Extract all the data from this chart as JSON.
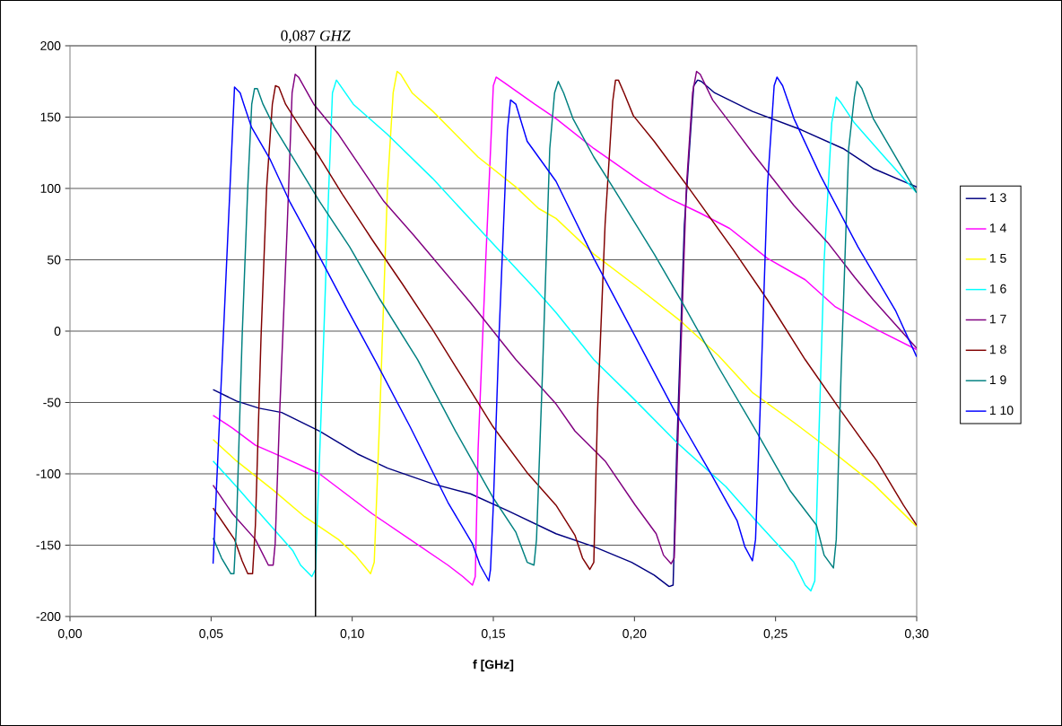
{
  "chart_data": {
    "type": "line",
    "xlabel": "f [GHz]",
    "xlim": [
      0,
      0.3
    ],
    "ylim": [
      -200,
      200
    ],
    "xticks": [
      {
        "value": 0,
        "label": "0,00"
      },
      {
        "value": 0.05,
        "label": "0,05"
      },
      {
        "value": 0.1,
        "label": "0,10"
      },
      {
        "value": 0.15,
        "label": "0,15"
      },
      {
        "value": 0.2,
        "label": "0,20"
      },
      {
        "value": 0.25,
        "label": "0,25"
      },
      {
        "value": 0.3,
        "label": "0,30"
      }
    ],
    "yticks": [
      -200,
      -150,
      -100,
      -50,
      0,
      50,
      100,
      150,
      200
    ],
    "grid": "y",
    "legend": "right",
    "ref_lines": [
      {
        "axis": "x",
        "value": 0.087,
        "label": "0,087 *GHZ*",
        "color": "#000000"
      }
    ],
    "series": [
      {
        "name": "1 3",
        "color": "#000080",
        "x": [
          0.0507,
          0.059,
          0.067,
          0.075,
          0.0884,
          0.1018,
          0.1125,
          0.1285,
          0.1419,
          0.1553,
          0.1722,
          0.1856,
          0.199,
          0.207,
          0.2123,
          0.2137,
          0.215,
          0.2177,
          0.221,
          0.2224,
          0.2237,
          0.2284,
          0.2418,
          0.2592,
          0.2739,
          0.2846,
          0.3
        ],
        "values": [
          -41,
          -49,
          -54,
          -57,
          -70,
          -86,
          -96,
          -107,
          -114,
          -126,
          -142,
          -151,
          -162,
          -171,
          -179,
          -178,
          -83,
          75,
          172,
          176,
          175,
          167,
          154,
          141,
          128,
          114,
          101
        ]
      },
      {
        "name": "1 4",
        "color": "#ff00ff",
        "x": [
          0.0507,
          0.0576,
          0.0657,
          0.075,
          0.0884,
          0.1071,
          0.1205,
          0.1339,
          0.1392,
          0.1426,
          0.1436,
          0.1446,
          0.1473,
          0.15,
          0.151,
          0.154,
          0.1647,
          0.1722,
          0.1856,
          0.203,
          0.2123,
          0.223,
          0.2337,
          0.2471,
          0.2605,
          0.2712,
          0.2859,
          0.3
        ],
        "values": [
          -59,
          -68,
          -80,
          -88,
          -100,
          -128,
          -146,
          -164,
          -172,
          -178,
          -172,
          -83,
          49,
          172,
          178,
          174,
          159,
          149,
          128,
          104,
          93,
          83,
          72,
          51,
          36,
          17,
          1,
          -13
        ]
      },
      {
        "name": "1 5",
        "color": "#ffff00",
        "x": [
          0.0507,
          0.059,
          0.0724,
          0.0831,
          0.0951,
          0.1011,
          0.1065,
          0.1078,
          0.1098,
          0.1125,
          0.1145,
          0.1159,
          0.1172,
          0.1212,
          0.1286,
          0.1446,
          0.158,
          0.166,
          0.1722,
          0.1856,
          0.2016,
          0.2164,
          0.2297,
          0.2418,
          0.2565,
          0.2712,
          0.2846,
          0.3
        ],
        "values": [
          -76,
          -91,
          -112,
          -130,
          -146,
          -157,
          -170,
          -162,
          -57,
          101,
          167,
          182,
          180,
          167,
          154,
          122,
          101,
          86,
          79,
          54,
          30,
          7,
          -17,
          -43,
          -64,
          -86,
          -107,
          -137
        ]
      },
      {
        "name": "1 6",
        "color": "#00ffff",
        "x": [
          0.0507,
          0.059,
          0.0683,
          0.079,
          0.0817,
          0.0857,
          0.087,
          0.089,
          0.0917,
          0.093,
          0.0944,
          0.1004,
          0.1124,
          0.1285,
          0.1472,
          0.1646,
          0.1722,
          0.1856,
          0.199,
          0.215,
          0.2324,
          0.2431,
          0.2565,
          0.2605,
          0.2625,
          0.2639,
          0.2652,
          0.2672,
          0.2699,
          0.2715,
          0.2732,
          0.2779,
          0.2886,
          0.3
        ],
        "values": [
          -91,
          -109,
          -130,
          -154,
          -164,
          -172,
          -167,
          -57,
          101,
          167,
          176,
          159,
          138,
          107,
          67,
          30,
          13,
          -20,
          -46,
          -78,
          -109,
          -133,
          -162,
          -178,
          -182,
          -175,
          -83,
          49,
          146,
          164,
          160,
          146,
          122,
          97
        ]
      },
      {
        "name": "1 7",
        "color": "#800080",
        "x": [
          0.0507,
          0.0576,
          0.0657,
          0.0703,
          0.072,
          0.0727,
          0.0743,
          0.077,
          0.0787,
          0.0798,
          0.081,
          0.0864,
          0.0951,
          0.1112,
          0.1219,
          0.1419,
          0.158,
          0.1722,
          0.1789,
          0.1896,
          0.2003,
          0.2077,
          0.2103,
          0.213,
          0.2141,
          0.2157,
          0.2184,
          0.2206,
          0.222,
          0.2233,
          0.2277,
          0.235,
          0.2418,
          0.2565,
          0.2685,
          0.2779,
          0.2846,
          0.3
        ],
        "values": [
          -108,
          -128,
          -146,
          -164,
          -164,
          -149,
          -57,
          75,
          167,
          180,
          178,
          159,
          138,
          91,
          67,
          20,
          -20,
          -51,
          -70,
          -91,
          -122,
          -142,
          -157,
          -163,
          -159,
          -57,
          101,
          167,
          182,
          180,
          162,
          143,
          125,
          88,
          62,
          38,
          22,
          -12
        ]
      },
      {
        "name": "1 8",
        "color": "#800000",
        "x": [
          0.0507,
          0.0583,
          0.061,
          0.063,
          0.0647,
          0.0657,
          0.0677,
          0.0697,
          0.0717,
          0.0728,
          0.074,
          0.0764,
          0.0831,
          0.0884,
          0.0965,
          0.1071,
          0.1178,
          0.1285,
          0.1392,
          0.1499,
          0.1619,
          0.1722,
          0.1789,
          0.1816,
          0.1842,
          0.1856,
          0.1869,
          0.1896,
          0.1923,
          0.1933,
          0.1943,
          0.1963,
          0.1996,
          0.207,
          0.219,
          0.235,
          0.2471,
          0.2605,
          0.2725,
          0.2859,
          0.2953,
          0.3
        ],
        "values": [
          -124,
          -146,
          -161,
          -170,
          -170,
          -136,
          -4,
          101,
          159,
          172,
          171,
          159,
          138,
          122,
          96,
          64,
          33,
          1,
          -33,
          -67,
          -99,
          -122,
          -143,
          -159,
          -167,
          -162,
          -57,
          75,
          161,
          176,
          176,
          167,
          151,
          133,
          101,
          57,
          22,
          -20,
          -54,
          -91,
          -122,
          -136
        ]
      },
      {
        "name": "1 9",
        "color": "#008080",
        "x": [
          0.0507,
          0.0537,
          0.057,
          0.0581,
          0.059,
          0.061,
          0.063,
          0.0644,
          0.0654,
          0.0664,
          0.0684,
          0.0724,
          0.0804,
          0.0884,
          0.0991,
          0.1099,
          0.1232,
          0.1366,
          0.15,
          0.158,
          0.162,
          0.1644,
          0.1653,
          0.1674,
          0.17,
          0.1717,
          0.173,
          0.1749,
          0.1782,
          0.1856,
          0.1923,
          0.207,
          0.2164,
          0.2297,
          0.2431,
          0.2552,
          0.2645,
          0.2672,
          0.2705,
          0.2715,
          0.2732,
          0.2759,
          0.2779,
          0.2788,
          0.2806,
          0.2846,
          0.2926,
          0.3
        ],
        "values": [
          -145,
          -159,
          -170,
          -170,
          -136,
          -4,
          101,
          159,
          170,
          170,
          159,
          143,
          117,
          91,
          59,
          22,
          -20,
          -70,
          -117,
          -141,
          -162,
          -164,
          -146,
          -30,
          128,
          167,
          175,
          167,
          149,
          122,
          101,
          54,
          22,
          -25,
          -70,
          -112,
          -136,
          -157,
          -166,
          -146,
          -30,
          128,
          164,
          175,
          170,
          149,
          122,
          97
        ]
      },
      {
        "name": "1 10",
        "color": "#0000ff",
        "x": [
          0.0507,
          0.0583,
          0.0603,
          0.0616,
          0.0643,
          0.071,
          0.0778,
          0.0871,
          0.0978,
          0.1085,
          0.1205,
          0.1339,
          0.1426,
          0.1453,
          0.1484,
          0.149,
          0.15,
          0.152,
          0.155,
          0.1561,
          0.158,
          0.162,
          0.1722,
          0.1856,
          0.199,
          0.2137,
          0.2271,
          0.2364,
          0.2391,
          0.2418,
          0.2429,
          0.2445,
          0.2471,
          0.2495,
          0.2505,
          0.2525,
          0.2565,
          0.2659,
          0.2792,
          0.2926,
          0.3
        ],
        "values": [
          -163,
          171,
          167,
          159,
          143,
          120,
          91,
          57,
          17,
          -22,
          -67,
          -120,
          -149,
          -164,
          -175,
          -167,
          -122,
          -4,
          141,
          162,
          159,
          133,
          105,
          51,
          1,
          -54,
          -100,
          -133,
          -151,
          -161,
          -146,
          -57,
          101,
          172,
          178,
          172,
          149,
          109,
          59,
          14,
          -18
        ]
      }
    ]
  }
}
